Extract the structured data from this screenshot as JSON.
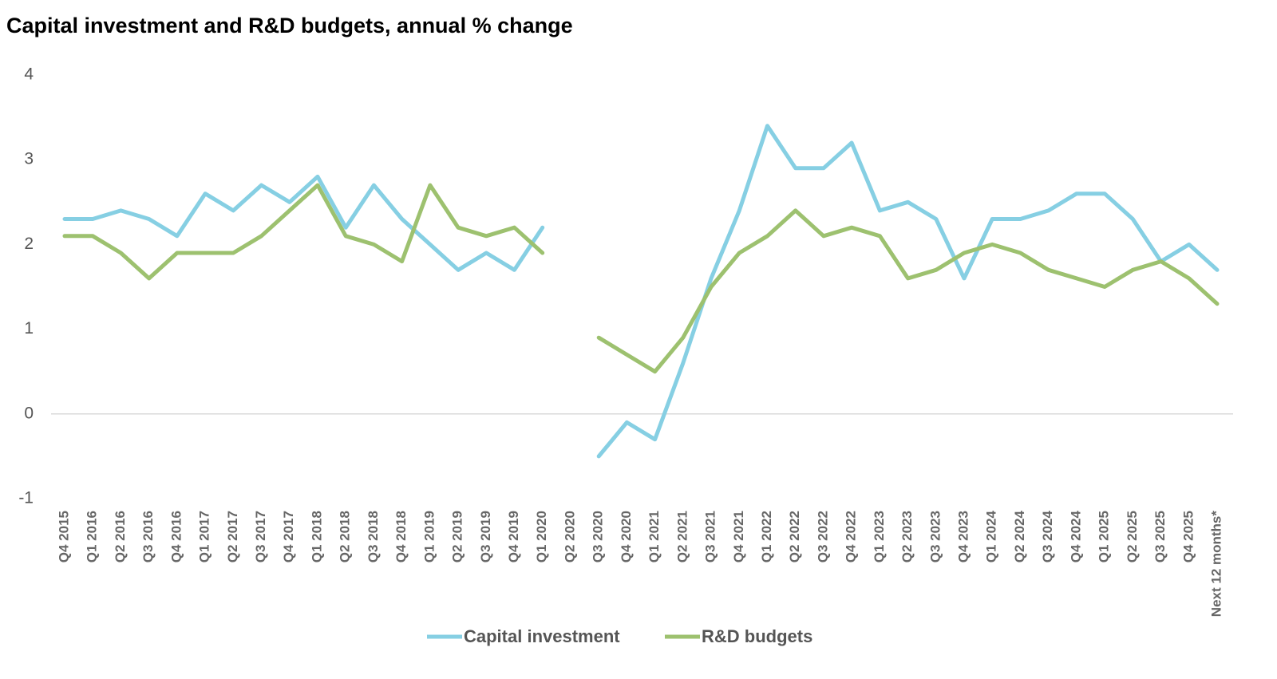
{
  "chart_data": {
    "type": "line",
    "title": "Capital investment and R&D budgets, annual % change",
    "categories": [
      "Q4 2015",
      "Q1 2016",
      "Q2 2016",
      "Q3 2016",
      "Q4 2016",
      "Q1 2017",
      "Q2 2017",
      "Q3 2017",
      "Q4 2017",
      "Q1 2018",
      "Q2 2018",
      "Q3 2018",
      "Q4 2018",
      "Q1 2019",
      "Q2 2019",
      "Q3 2019",
      "Q4 2019",
      "Q1 2020",
      "Q2 2020",
      "Q3 2020",
      "Q4 2020",
      "Q1 2021",
      "Q2 2021",
      "Q3 2021",
      "Q4 2021",
      "Q1 2022",
      "Q2 2022",
      "Q3 2022",
      "Q4 2022",
      "Q1 2023",
      "Q2 2023",
      "Q3 2023",
      "Q4 2023",
      "Q1 2024",
      "Q2 2024",
      "Q3 2024",
      "Q4 2024",
      "Q1 2025",
      "Q2 2025",
      "Q3 2025",
      "Q4 2025",
      "Next 12 months*"
    ],
    "series": [
      {
        "name": "Capital investment",
        "color": "#86cfe3",
        "values": [
          2.3,
          2.3,
          2.4,
          2.3,
          2.1,
          2.6,
          2.4,
          2.7,
          2.5,
          2.8,
          2.2,
          2.7,
          2.3,
          2.0,
          1.7,
          1.9,
          1.7,
          2.2,
          null,
          -0.5,
          -0.1,
          -0.3,
          0.6,
          1.6,
          2.4,
          3.4,
          2.9,
          2.9,
          3.2,
          2.4,
          2.5,
          2.3,
          1.6,
          2.3,
          2.3,
          2.4,
          2.6,
          2.6,
          2.3,
          1.8,
          2.0,
          1.7
        ]
      },
      {
        "name": "R&D budgets",
        "color": "#9dc16f",
        "values": [
          2.1,
          2.1,
          1.9,
          1.6,
          1.9,
          1.9,
          1.9,
          2.1,
          2.4,
          2.7,
          2.1,
          2.0,
          1.8,
          2.7,
          2.2,
          2.1,
          2.2,
          1.9,
          null,
          0.9,
          0.7,
          0.5,
          0.9,
          1.5,
          1.9,
          2.1,
          2.4,
          2.1,
          2.2,
          2.1,
          1.6,
          1.7,
          1.9,
          2.0,
          1.9,
          1.7,
          1.6,
          1.5,
          1.7,
          1.8,
          1.6,
          1.3
        ]
      }
    ],
    "ylim": [
      -1,
      4
    ],
    "yticks": [
      -1,
      0,
      1,
      2,
      3,
      4
    ],
    "grid": false,
    "legend": "bottom"
  }
}
